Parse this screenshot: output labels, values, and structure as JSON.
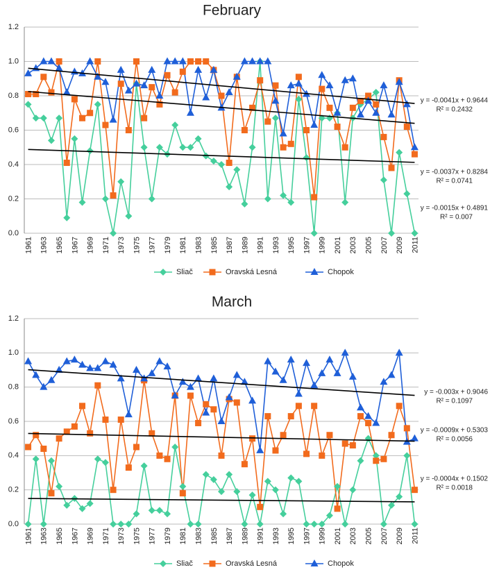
{
  "chart_data": [
    {
      "type": "line",
      "title": "February",
      "categories": [
        "1961",
        null,
        "1963",
        null,
        "1965",
        null,
        "1967",
        null,
        "1969",
        null,
        "1971",
        null,
        "1973",
        null,
        "1975",
        null,
        "1977",
        null,
        "1979",
        null,
        "1981",
        null,
        "1983",
        null,
        "1985",
        null,
        "1987",
        null,
        "1989",
        null,
        "1991",
        null,
        "1993",
        null,
        "1995",
        null,
        "1997",
        null,
        "1999",
        null,
        "2001",
        null,
        "2003",
        null,
        "2005",
        null,
        "2007",
        null,
        "2009",
        null,
        "2011"
      ],
      "ylim": [
        0,
        1.2
      ],
      "yticks": [
        {
          "value": 0,
          "label": "0.0"
        },
        0.2,
        0.4,
        0.6,
        0.8,
        {
          "value": 1,
          "label": "1.0"
        },
        1.2
      ],
      "grid": true,
      "series": [
        {
          "name": "Sliač",
          "color": "#45cf9c",
          "marker": "diamond",
          "values": [
            0.75,
            0.67,
            0.67,
            0.54,
            0.67,
            0.09,
            0.55,
            0.18,
            0.48,
            0.75,
            0.2,
            0,
            0.3,
            0.1,
            0.87,
            0.5,
            0.2,
            0.5,
            0.46,
            0.63,
            0.5,
            0.5,
            0.55,
            0.45,
            0.42,
            0.4,
            0.27,
            0.37,
            0.17,
            0.5,
            1,
            0.2,
            0.67,
            0.22,
            0.18,
            0.78,
            0.44,
            0,
            0.67,
            0.67,
            0.7,
            0.18,
            0.67,
            0.75,
            0.78,
            0.82,
            0.31,
            0,
            0.47,
            0.23,
            0
          ],
          "trendline": {
            "equation": "y = -0.0015x + 0.4891",
            "r2": "R² = 0.007",
            "slope": -0.0015,
            "intercept": 0.4891
          }
        },
        {
          "name": "Oravská Lesná",
          "color": "#f26b1d",
          "marker": "square",
          "values": [
            0.81,
            0.81,
            0.91,
            0.82,
            1,
            0.41,
            0.78,
            0.67,
            0.7,
            1,
            0.63,
            0.22,
            0.87,
            0.6,
            1,
            0.67,
            0.85,
            0.75,
            0.92,
            0.82,
            0.94,
            1,
            1,
            1,
            0.95,
            0.8,
            0.41,
            0.91,
            0.6,
            0.73,
            0.89,
            0.65,
            0.86,
            0.5,
            0.52,
            0.91,
            0.6,
            0.21,
            0.84,
            0.73,
            0.62,
            0.5,
            0.73,
            0.77,
            0.8,
            0.75,
            0.56,
            0.38,
            0.89,
            0.62,
            0.46
          ],
          "trendline": {
            "equation": "y = -0.0037x + 0.8284",
            "r2": "R² = 0.0741",
            "slope": -0.0037,
            "intercept": 0.8284
          }
        },
        {
          "name": "Chopok",
          "color": "#1f5fd8",
          "marker": "triangle",
          "values": [
            0.93,
            0.96,
            1,
            1,
            0.96,
            0.82,
            0.94,
            0.93,
            1,
            0.91,
            0.88,
            0.66,
            0.95,
            0.83,
            0.87,
            0.86,
            0.95,
            0.8,
            1,
            1,
            1,
            0.7,
            0.95,
            0.79,
            0.95,
            0.73,
            0.82,
            0.91,
            1,
            1,
            1,
            1,
            0.77,
            0.58,
            0.86,
            0.87,
            0.81,
            0.63,
            0.92,
            0.86,
            0.7,
            0.89,
            0.9,
            0.69,
            0.77,
            0.7,
            0.86,
            0.69,
            0.88,
            0.75,
            0.5
          ],
          "trendline": {
            "equation": "y = -0.0041x + 0.9644",
            "r2": "R² = 0.2432",
            "slope": -0.0041,
            "intercept": 0.9644
          }
        }
      ]
    },
    {
      "type": "line",
      "title": "March",
      "categories": [
        "1961",
        null,
        "1963",
        null,
        "1965",
        null,
        "1967",
        null,
        "1969",
        null,
        "1971",
        null,
        "1973",
        null,
        "1975",
        null,
        "1977",
        null,
        "1979",
        null,
        "1981",
        null,
        "1983",
        null,
        "1985",
        null,
        "1987",
        null,
        "1989",
        null,
        "1991",
        null,
        "1993",
        null,
        "1995",
        null,
        "1997",
        null,
        "1999",
        null,
        "2001",
        null,
        "2003",
        null,
        "2005",
        null,
        "2007",
        null,
        "2009",
        null,
        "2011"
      ],
      "ylim": [
        0,
        1.2
      ],
      "yticks": [
        {
          "value": 0,
          "label": "0.0"
        },
        0.2,
        0.4,
        0.6,
        0.8,
        {
          "value": 1,
          "label": "1.0"
        },
        1.2
      ],
      "grid": true,
      "series": [
        {
          "name": "Sliač",
          "color": "#45cf9c",
          "marker": "diamond",
          "values": [
            0,
            0.38,
            0,
            0.37,
            0.22,
            0.11,
            0.15,
            0.09,
            0.12,
            0.38,
            0.36,
            0,
            0,
            0,
            0.06,
            0.34,
            0.08,
            0.08,
            0.06,
            0.45,
            0.22,
            0,
            0,
            0.29,
            0.26,
            0.19,
            0.29,
            0.19,
            0,
            0.17,
            0,
            0.25,
            0.2,
            0.06,
            0.27,
            0.25,
            0,
            0,
            0,
            0.05,
            0.22,
            0,
            0.2,
            0.37,
            0.5,
            0.4,
            0,
            0.11,
            0.16,
            0.4,
            0
          ],
          "trendline": {
            "equation": "y = -0.0004x + 0.1502",
            "r2": "R² = 0.0018",
            "slope": -0.0004,
            "intercept": 0.1502
          }
        },
        {
          "name": "Oravská Lesná",
          "color": "#f26b1d",
          "marker": "square",
          "values": [
            0.45,
            0.52,
            0.44,
            0.18,
            0.5,
            0.54,
            0.57,
            0.69,
            0.53,
            0.81,
            0.61,
            0.2,
            0.61,
            0.33,
            0.45,
            0.84,
            0.53,
            0.4,
            0.38,
            0.75,
            0.18,
            0.75,
            0.59,
            0.7,
            0.67,
            0.4,
            0.73,
            0.71,
            0.35,
            0.5,
            0.1,
            0.63,
            0.43,
            0.52,
            0.63,
            0.69,
            0.41,
            0.69,
            0.4,
            0.52,
            0.09,
            0.47,
            0.46,
            0.63,
            0.59,
            0.37,
            0.38,
            0.52,
            0.69,
            0.56,
            0.2
          ],
          "trendline": {
            "equation": "y = -0.0009x + 0.5303",
            "r2": "R² = 0.0056",
            "slope": -0.0009,
            "intercept": 0.5303
          }
        },
        {
          "name": "Chopok",
          "color": "#1f5fd8",
          "marker": "triangle",
          "values": [
            0.95,
            0.87,
            0.8,
            0.84,
            0.9,
            0.95,
            0.96,
            0.93,
            0.91,
            0.91,
            0.95,
            0.93,
            0.85,
            0.64,
            0.9,
            0.85,
            0.88,
            0.95,
            0.92,
            0.75,
            0.83,
            0.8,
            0.85,
            0.65,
            0.85,
            0.6,
            0.74,
            0.87,
            0.83,
            0.72,
            0.43,
            0.95,
            0.89,
            0.84,
            0.96,
            0.76,
            0.94,
            0.81,
            0.88,
            0.96,
            0.88,
            1,
            0.86,
            0.68,
            0.63,
            0.59,
            0.83,
            0.87,
            1,
            0.48,
            0.5
          ],
          "trendline": {
            "equation": "y = -0.003x + 0.9046",
            "r2": "R² = 0.1097",
            "slope": -0.003,
            "intercept": 0.9046
          }
        }
      ]
    }
  ]
}
